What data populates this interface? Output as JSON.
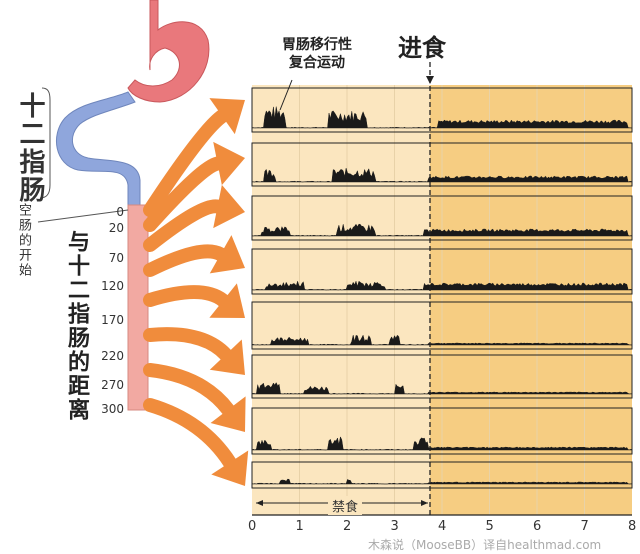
{
  "feeding_label": "进食",
  "mmc_label_line1": "胃肠移行性",
  "mmc_label_line2": "复合运动",
  "duodenum_label": "十二指肠",
  "jejunum_start_label": "空肠的开始",
  "distance_label": "与十二指肠的距离",
  "distance_ticks": [
    "0",
    "20",
    "70",
    "120",
    "170",
    "220",
    "270",
    "300"
  ],
  "x_ticks": [
    "0",
    "1",
    "2",
    "3",
    "4",
    "5",
    "6",
    "7",
    "8"
  ],
  "fasting_label": "禁食",
  "credit": "木森说（MooseBB）译自healthmad.com",
  "colors": {
    "fasting_bg": "#fbe6bf",
    "fed_bg": "#f6cd82",
    "arrow": "#f08c3c",
    "stomach": "#e9787c",
    "duodenum": "#8fa6dc",
    "intestine": "#f2a9a2",
    "trace": "#1a1a1a"
  },
  "chart_data": {
    "type": "area",
    "x_range": [
      0,
      8
    ],
    "feeding_time": 3.7,
    "traces_count": 8,
    "x_ticks": [
      0,
      1,
      2,
      3,
      4,
      5,
      6,
      7,
      8
    ]
  }
}
